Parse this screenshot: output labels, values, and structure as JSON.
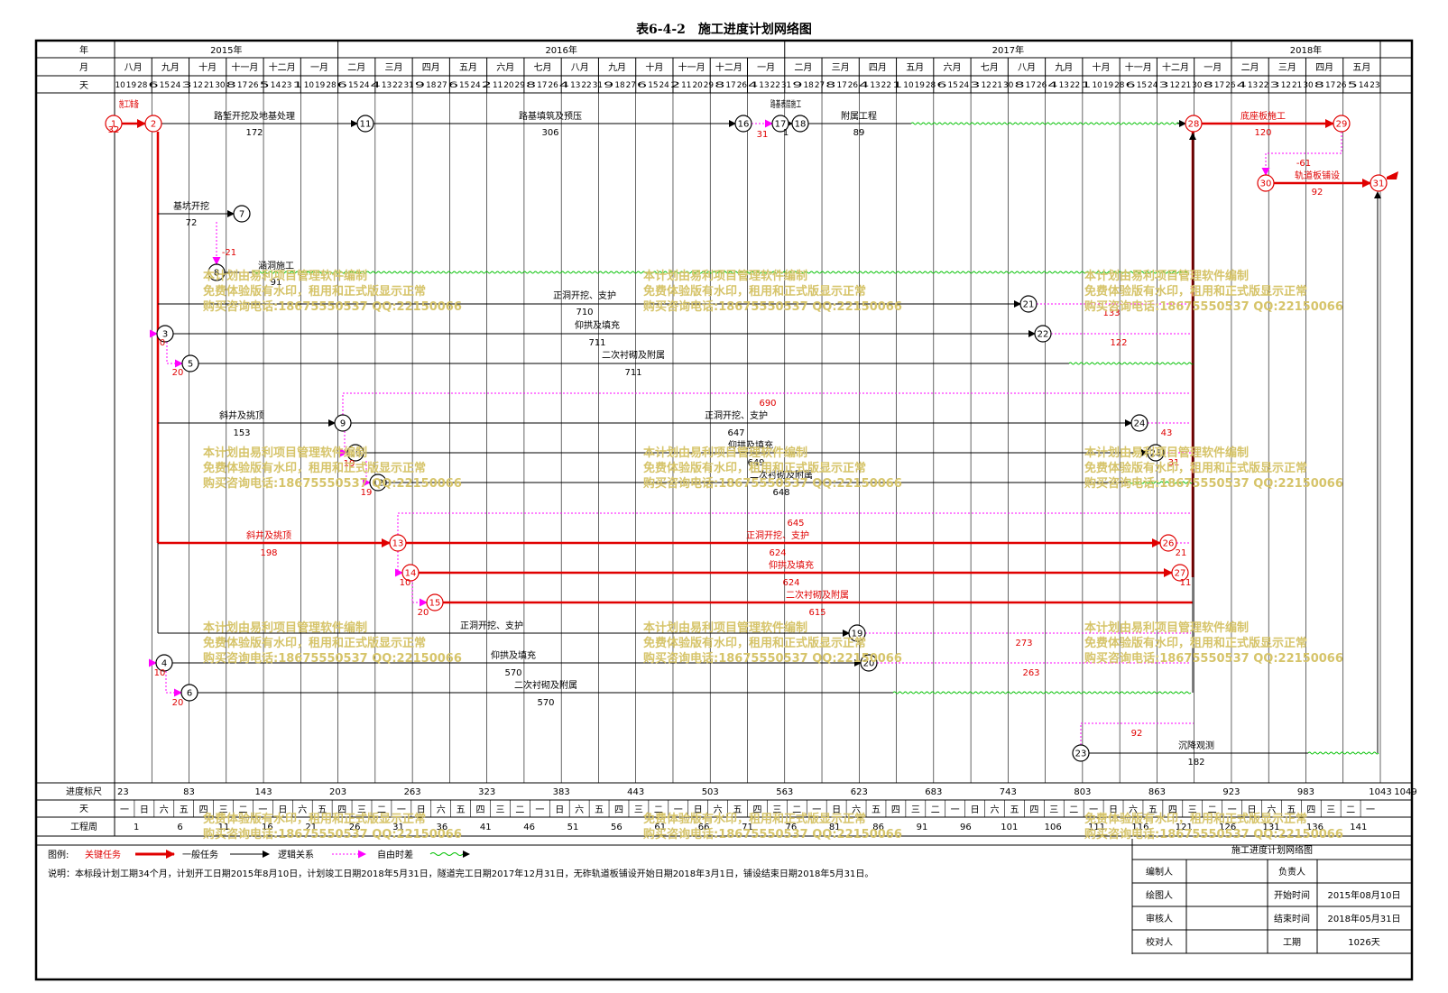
{
  "title": "表6-4-2　施工进度计划网络图",
  "header_labels": {
    "year": "年",
    "month": "月",
    "day": "天"
  },
  "years": [
    {
      "label": "2015年",
      "from": 0,
      "to": 6
    },
    {
      "label": "2016年",
      "from": 6,
      "to": 18
    },
    {
      "label": "2017年",
      "from": 18,
      "to": 30
    },
    {
      "label": "2018年",
      "from": 30,
      "to": 35
    }
  ],
  "months": [
    "八月",
    "九月",
    "十月",
    "十一月",
    "十二月",
    "一月",
    "二月",
    "三月",
    "四月",
    "五月",
    "六月",
    "七月",
    "八月",
    "九月",
    "十月",
    "十一月",
    "十二月",
    "一月",
    "二月",
    "三月",
    "四月",
    "五月",
    "六月",
    "七月",
    "八月",
    "九月",
    "十月",
    "十一月",
    "十二月",
    "一月",
    "二月",
    "三月",
    "四月",
    "五月"
  ],
  "days_row": "10 19 28 6 15 24 3 12 21 30 8 17 26 5 14 23 1 10 19 28 6 15 24 4 13 22 31 9 18 27 6 15 24 2 11 20 29 8 17 26 4 13 22 31 9 18 27 6 15 24 2 11 20 29 8 17 26 4 13 22 31 9 18 27 8 17 26 4 13 22 1 10 19 28 6 15 24 3 12 21 30 8 17 26 4 13 22 1 10 19 28 6 15 24 3 12 21 30 8 17 26 4 13 22 3 12 21 30 8 17 26 5 14 23",
  "bottom": {
    "scale_label": "进度标尺",
    "scale_ticks": [
      "23",
      "83",
      "143",
      "203",
      "263",
      "323",
      "383",
      "443",
      "503",
      "563",
      "623",
      "683",
      "743",
      "803",
      "863",
      "923",
      "983",
      "1043",
      "1049"
    ],
    "day_label": "天",
    "weekday_cycle": [
      "一",
      "日",
      "六",
      "五",
      "四",
      "三",
      "二"
    ],
    "week_label": "工程周",
    "week_ticks": [
      "1",
      "6",
      "11",
      "16",
      "21",
      "26",
      "31",
      "36",
      "41",
      "46",
      "51",
      "56",
      "61",
      "66",
      "71",
      "76",
      "81",
      "86",
      "91",
      "96",
      "101",
      "106",
      "111",
      "116",
      "121",
      "126",
      "131",
      "136",
      "141"
    ]
  },
  "legend": {
    "prefix": "图例:",
    "critical": "关键任务",
    "normal": "一般任务",
    "logic": "逻辑关系",
    "float": "自由时差"
  },
  "note": "说明：本标段计划工期34个月，计划开工日期2015年8月10日，计划竣工日期2018年5月31日，隧道完工日期2017年12月31日，无砟轨道板铺设开始日期2018年3月1日，铺设结束日期2018年5月31日。",
  "info_table": {
    "title": "施工进度计划网络图",
    "rows": [
      {
        "k1": "编制人",
        "v1": "",
        "k2": "负责人",
        "v2": ""
      },
      {
        "k1": "绘图人",
        "v1": "",
        "k2": "开始时间",
        "v2": "2015年08月10日"
      },
      {
        "k1": "审核人",
        "v1": "",
        "k2": "结束时间",
        "v2": "2018年05月31日"
      },
      {
        "k1": "校对人",
        "v1": "",
        "k2": "工期",
        "v2": "1026天"
      }
    ]
  },
  "watermark": [
    "本计划由易利项目管理软件编制",
    "免费体验版有水印，租用和正式版显示正常",
    "购买咨询电话:18675550537 QQ:22150066"
  ],
  "colors": {
    "critical": "#e00000",
    "normal": "#000000",
    "logic": "#ff00ff",
    "float": "#00c000",
    "watermark": "#d6c46a"
  },
  "nodes": [
    {
      "id": "1",
      "critical": true
    },
    {
      "id": "2",
      "critical": true
    },
    {
      "id": "3",
      "critical": false
    },
    {
      "id": "4",
      "critical": false
    },
    {
      "id": "5",
      "critical": false
    },
    {
      "id": "6",
      "critical": false
    },
    {
      "id": "7",
      "critical": false
    },
    {
      "id": "8",
      "critical": false
    },
    {
      "id": "9",
      "critical": false
    },
    {
      "id": "10",
      "critical": false
    },
    {
      "id": "11",
      "critical": false
    },
    {
      "id": "12",
      "critical": false
    },
    {
      "id": "13",
      "critical": true
    },
    {
      "id": "14",
      "critical": true
    },
    {
      "id": "15",
      "critical": true
    },
    {
      "id": "16",
      "critical": false
    },
    {
      "id": "17",
      "critical": false
    },
    {
      "id": "18",
      "critical": false
    },
    {
      "id": "19",
      "critical": false
    },
    {
      "id": "20",
      "critical": false
    },
    {
      "id": "21",
      "critical": false
    },
    {
      "id": "22",
      "critical": false
    },
    {
      "id": "23",
      "critical": false
    },
    {
      "id": "24",
      "critical": false
    },
    {
      "id": "25",
      "critical": false
    },
    {
      "id": "26",
      "critical": true
    },
    {
      "id": "27",
      "critical": true
    },
    {
      "id": "28",
      "critical": true
    },
    {
      "id": "29",
      "critical": true
    },
    {
      "id": "30",
      "critical": true
    },
    {
      "id": "31",
      "critical": true
    }
  ],
  "tasks": [
    {
      "from": "1",
      "to": "2",
      "name": "施工准备",
      "duration": "32",
      "critical": true
    },
    {
      "from": "2",
      "to": "11",
      "name": "路堑开挖及地基处理",
      "duration": "172",
      "critical": false
    },
    {
      "from": "11",
      "to": "16",
      "name": "路基填筑及预压",
      "duration": "306",
      "critical": false
    },
    {
      "from": "17",
      "to": "18",
      "name": "路基表层施工",
      "duration": "1",
      "critical": false
    },
    {
      "from": "18",
      "to": "28",
      "name": "附属工程",
      "duration": "89",
      "critical": false
    },
    {
      "from": "28",
      "to": "29",
      "name": "底座板施工",
      "duration": "120",
      "critical": true
    },
    {
      "from": "30",
      "to": "31",
      "name": "轨道板铺设",
      "duration": "92",
      "critical": true
    },
    {
      "from": "2",
      "to": "7",
      "name": "基坑开挖",
      "duration": "72",
      "critical": false
    },
    {
      "from": "8",
      "to": "28",
      "name": "涵洞施工",
      "duration": "91",
      "critical": false
    },
    {
      "from": "3",
      "to": "21",
      "name": "正洞开挖、支护",
      "duration": "710",
      "critical": false
    },
    {
      "from": "3",
      "to": "22",
      "name": "仰拱及填充",
      "duration": "711",
      "critical": false
    },
    {
      "from": "5",
      "to": "28",
      "name": "二次衬砌及附属",
      "duration": "711",
      "critical": false
    },
    {
      "from": "2",
      "to": "9",
      "name": "斜井及挑顶",
      "duration": "153",
      "critical": false
    },
    {
      "from": "9",
      "to": "24",
      "name": "正洞开挖、支护",
      "duration": "647",
      "critical": false
    },
    {
      "from": "10",
      "to": "25",
      "name": "仰拱及填充",
      "duration": "649",
      "critical": false
    },
    {
      "from": "12",
      "to": "28",
      "name": "二次衬砌及附属",
      "duration": "648",
      "critical": false
    },
    {
      "from": "2",
      "to": "13",
      "name": "斜井及挑顶",
      "duration": "198",
      "critical": true
    },
    {
      "from": "13",
      "to": "26",
      "name": "正洞开挖、支护",
      "duration": "624",
      "critical": true
    },
    {
      "from": "14",
      "to": "27",
      "name": "仰拱及填充",
      "duration": "624",
      "critical": true
    },
    {
      "from": "15",
      "to": "28",
      "name": "二次衬砌及附属",
      "duration": "615",
      "critical": true
    },
    {
      "from": "2",
      "to": "19",
      "name": "正洞开挖、支护",
      "duration": "",
      "critical": false
    },
    {
      "from": "4",
      "to": "20",
      "name": "仰拱及填充",
      "duration": "570",
      "critical": false
    },
    {
      "from": "6",
      "to": "28",
      "name": "二次衬砌及附属",
      "duration": "570",
      "critical": false
    },
    {
      "from": "23",
      "to": "31",
      "name": "沉降观测",
      "duration": "182",
      "critical": false
    }
  ],
  "float_values": [
    "31",
    "-21",
    "0",
    "20",
    "133",
    "122",
    "690",
    "43",
    "19",
    "31",
    "19",
    "645",
    "21",
    "10",
    "11",
    "20",
    "10",
    "273",
    "263",
    "20",
    "92",
    "-61"
  ]
}
